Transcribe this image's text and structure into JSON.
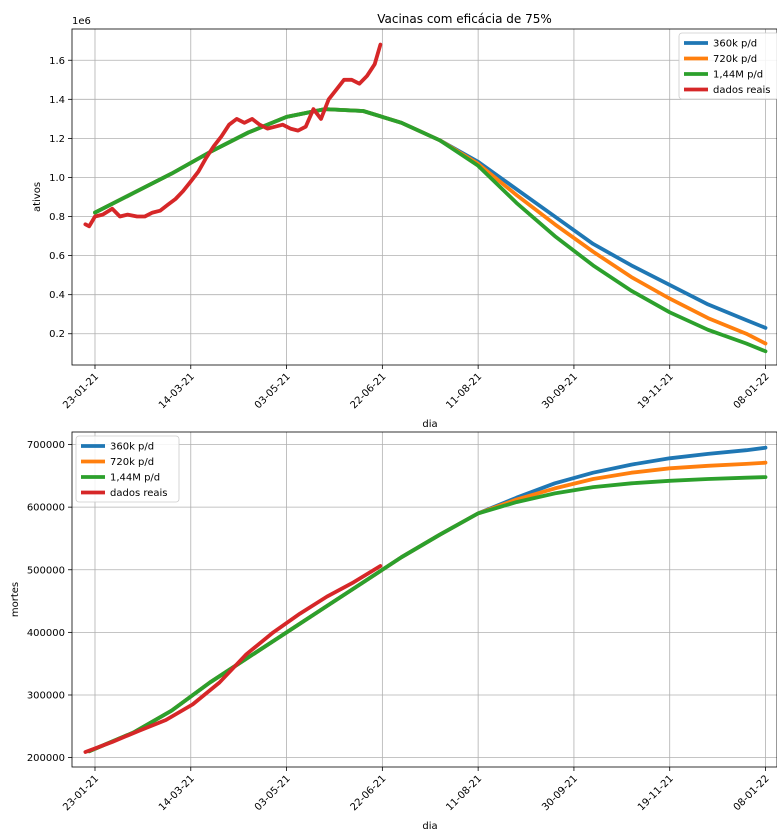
{
  "chart_data": [
    {
      "type": "line",
      "title": "Vacinas com eficácia de 75%",
      "xlabel": "dia",
      "ylabel": "ativos",
      "y_offset_label": "1e6",
      "x_ticks": [
        "23-01-21",
        "14-03-21",
        "03-05-21",
        "22-06-21",
        "11-08-21",
        "30-09-21",
        "19-11-21",
        "08-01-22"
      ],
      "y_ticks": [
        "0.2",
        "0.4",
        "0.6",
        "0.8",
        "1.0",
        "1.2",
        "1.4",
        "1.6"
      ],
      "xlim": [
        "2021-01-11",
        "2022-01-14"
      ],
      "ylim": [
        0.04,
        1.76
      ],
      "grid": true,
      "legend_position": "top-right",
      "series": [
        {
          "name": "360k p/d",
          "color": "#1f77b4",
          "x": [
            "2021-01-23",
            "2021-02-12",
            "2021-03-04",
            "2021-03-24",
            "2021-04-13",
            "2021-05-03",
            "2021-05-23",
            "2021-06-12",
            "2021-07-02",
            "2021-07-22",
            "2021-08-11",
            "2021-08-31",
            "2021-09-20",
            "2021-10-10",
            "2021-10-30",
            "2021-11-19",
            "2021-12-09",
            "2021-12-29",
            "2022-01-08"
          ],
          "values": [
            0.82,
            0.92,
            1.02,
            1.13,
            1.23,
            1.31,
            1.35,
            1.34,
            1.28,
            1.19,
            1.08,
            0.94,
            0.8,
            0.66,
            0.55,
            0.45,
            0.35,
            0.27,
            0.23
          ]
        },
        {
          "name": "720k p/d",
          "color": "#ff7f0e",
          "x": [
            "2021-01-23",
            "2021-02-12",
            "2021-03-04",
            "2021-03-24",
            "2021-04-13",
            "2021-05-03",
            "2021-05-23",
            "2021-06-12",
            "2021-07-02",
            "2021-07-22",
            "2021-08-11",
            "2021-08-31",
            "2021-09-20",
            "2021-10-10",
            "2021-10-30",
            "2021-11-19",
            "2021-12-09",
            "2021-12-29",
            "2022-01-08"
          ],
          "values": [
            0.82,
            0.92,
            1.02,
            1.13,
            1.23,
            1.31,
            1.35,
            1.34,
            1.28,
            1.19,
            1.07,
            0.91,
            0.76,
            0.62,
            0.49,
            0.38,
            0.28,
            0.2,
            0.15
          ]
        },
        {
          "name": "1,44M p/d",
          "color": "#2ca02c",
          "x": [
            "2021-01-23",
            "2021-02-12",
            "2021-03-04",
            "2021-03-24",
            "2021-04-13",
            "2021-05-03",
            "2021-05-23",
            "2021-06-12",
            "2021-07-02",
            "2021-07-22",
            "2021-08-11",
            "2021-08-31",
            "2021-09-20",
            "2021-10-10",
            "2021-10-30",
            "2021-11-19",
            "2021-12-09",
            "2021-12-29",
            "2022-01-08"
          ],
          "values": [
            0.82,
            0.92,
            1.02,
            1.13,
            1.23,
            1.31,
            1.35,
            1.34,
            1.28,
            1.19,
            1.06,
            0.87,
            0.7,
            0.55,
            0.42,
            0.31,
            0.22,
            0.15,
            0.11
          ]
        },
        {
          "name": "dados reais",
          "color": "#d62728",
          "x": [
            "2021-01-18",
            "2021-01-20",
            "2021-01-23",
            "2021-01-27",
            "2021-02-01",
            "2021-02-05",
            "2021-02-09",
            "2021-02-14",
            "2021-02-18",
            "2021-02-22",
            "2021-02-26",
            "2021-03-02",
            "2021-03-06",
            "2021-03-10",
            "2021-03-14",
            "2021-03-18",
            "2021-03-22",
            "2021-03-26",
            "2021-03-30",
            "2021-04-03",
            "2021-04-07",
            "2021-04-11",
            "2021-04-15",
            "2021-04-19",
            "2021-04-23",
            "2021-04-27",
            "2021-05-01",
            "2021-05-05",
            "2021-05-09",
            "2021-05-13",
            "2021-05-17",
            "2021-05-21",
            "2021-05-25",
            "2021-05-29",
            "2021-06-02",
            "2021-06-06",
            "2021-06-10",
            "2021-06-14",
            "2021-06-18",
            "2021-06-21"
          ],
          "values": [
            0.76,
            0.75,
            0.8,
            0.81,
            0.84,
            0.8,
            0.81,
            0.8,
            0.8,
            0.82,
            0.83,
            0.86,
            0.89,
            0.93,
            0.98,
            1.03,
            1.1,
            1.16,
            1.21,
            1.27,
            1.3,
            1.28,
            1.3,
            1.27,
            1.25,
            1.26,
            1.27,
            1.25,
            1.24,
            1.26,
            1.35,
            1.3,
            1.4,
            1.45,
            1.5,
            1.5,
            1.48,
            1.52,
            1.58,
            1.68
          ]
        }
      ]
    },
    {
      "type": "line",
      "title": "",
      "xlabel": "dia",
      "ylabel": "mortes",
      "x_ticks": [
        "23-01-21",
        "14-03-21",
        "03-05-21",
        "22-06-21",
        "11-08-21",
        "30-09-21",
        "19-11-21",
        "08-01-22"
      ],
      "y_ticks": [
        "200000",
        "300000",
        "400000",
        "500000",
        "600000",
        "700000"
      ],
      "xlim": [
        "2021-01-11",
        "2022-01-14"
      ],
      "ylim": [
        185000,
        720000
      ],
      "grid": true,
      "legend_position": "top-left",
      "series": [
        {
          "name": "360k p/d",
          "color": "#1f77b4",
          "x": [
            "2021-01-20",
            "2021-02-12",
            "2021-03-04",
            "2021-03-24",
            "2021-04-13",
            "2021-05-03",
            "2021-05-23",
            "2021-06-12",
            "2021-07-02",
            "2021-07-22",
            "2021-08-11",
            "2021-08-31",
            "2021-09-20",
            "2021-10-10",
            "2021-10-30",
            "2021-11-19",
            "2021-12-09",
            "2021-12-29",
            "2022-01-08"
          ],
          "values": [
            210000,
            240000,
            275000,
            320000,
            360000,
            400000,
            440000,
            480000,
            520000,
            556000,
            590000,
            615000,
            638000,
            655000,
            668000,
            678000,
            685000,
            691000,
            695000
          ]
        },
        {
          "name": "720k p/d",
          "color": "#ff7f0e",
          "x": [
            "2021-01-20",
            "2021-02-12",
            "2021-03-04",
            "2021-03-24",
            "2021-04-13",
            "2021-05-03",
            "2021-05-23",
            "2021-06-12",
            "2021-07-02",
            "2021-07-22",
            "2021-08-11",
            "2021-08-31",
            "2021-09-20",
            "2021-10-10",
            "2021-10-30",
            "2021-11-19",
            "2021-12-09",
            "2021-12-29",
            "2022-01-08"
          ],
          "values": [
            210000,
            240000,
            275000,
            320000,
            360000,
            400000,
            440000,
            480000,
            520000,
            556000,
            590000,
            612000,
            630000,
            645000,
            655000,
            662000,
            666000,
            669000,
            671000
          ]
        },
        {
          "name": "1,44M p/d",
          "color": "#2ca02c",
          "x": [
            "2021-01-20",
            "2021-02-12",
            "2021-03-04",
            "2021-03-24",
            "2021-04-13",
            "2021-05-03",
            "2021-05-23",
            "2021-06-12",
            "2021-07-02",
            "2021-07-22",
            "2021-08-11",
            "2021-08-31",
            "2021-09-20",
            "2021-10-10",
            "2021-10-30",
            "2021-11-19",
            "2021-12-09",
            "2021-12-29",
            "2022-01-08"
          ],
          "values": [
            210000,
            240000,
            275000,
            320000,
            360000,
            400000,
            440000,
            480000,
            520000,
            556000,
            590000,
            608000,
            622000,
            632000,
            638000,
            642000,
            645000,
            647000,
            648000
          ]
        },
        {
          "name": "dados reais",
          "color": "#d62728",
          "x": [
            "2021-01-18",
            "2021-02-01",
            "2021-02-15",
            "2021-03-01",
            "2021-03-15",
            "2021-03-29",
            "2021-04-12",
            "2021-04-26",
            "2021-05-10",
            "2021-05-24",
            "2021-06-07",
            "2021-06-21"
          ],
          "values": [
            209000,
            225000,
            243000,
            260000,
            285000,
            320000,
            365000,
            400000,
            430000,
            457000,
            480000,
            506000
          ]
        }
      ]
    }
  ]
}
